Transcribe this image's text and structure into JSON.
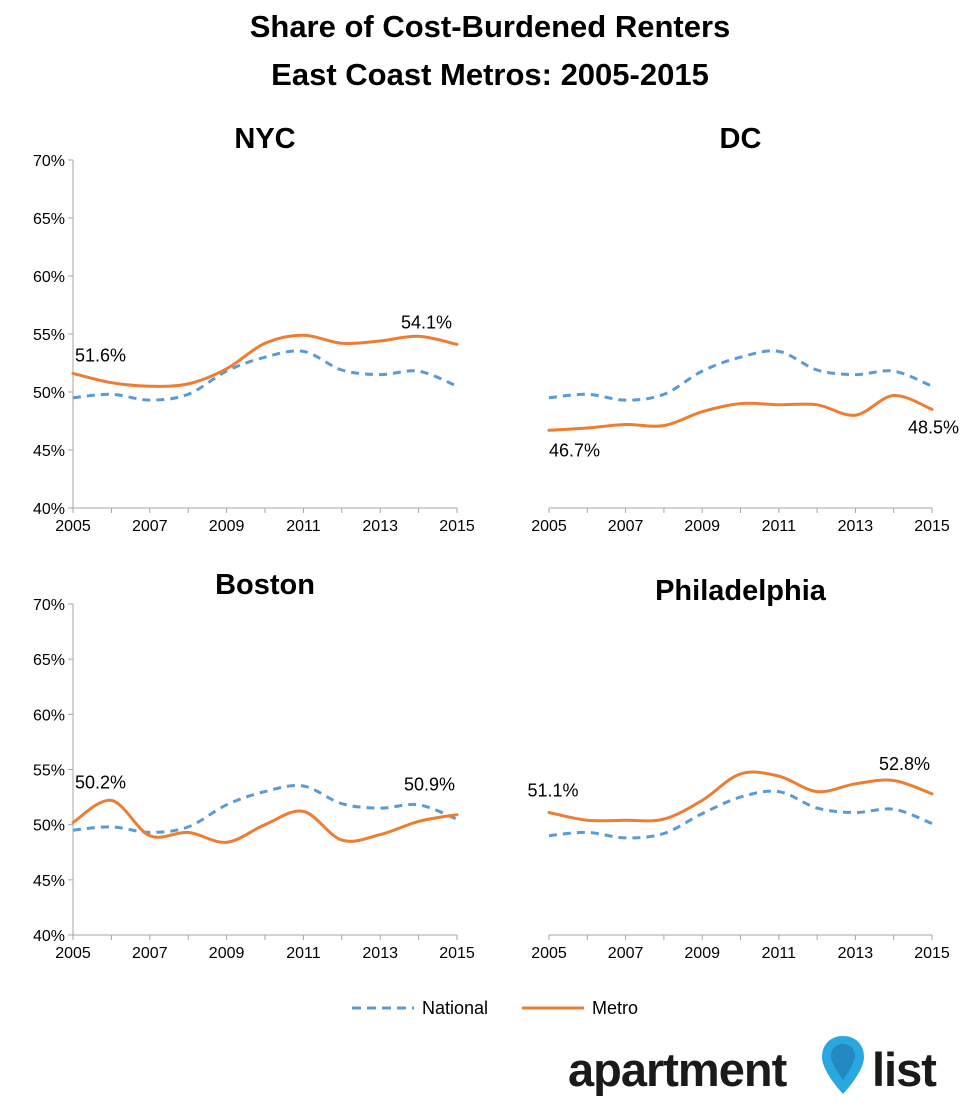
{
  "title_line1": "Share of Cost-Burdened Renters",
  "title_line2": "East Coast Metros: 2005-2015",
  "colors": {
    "national": "#5b9bd5",
    "metro": "#ed7d31"
  },
  "legend": {
    "national": "National",
    "metro": "Metro"
  },
  "logo": {
    "part1": "apartment",
    "part2": "list",
    "icon": "map-pin-icon"
  },
  "chart_data": [
    {
      "type": "line",
      "title": "NYC",
      "x": [
        2005,
        2006,
        2007,
        2008,
        2009,
        2010,
        2011,
        2012,
        2013,
        2014,
        2015
      ],
      "xticks": [
        "2005",
        "2007",
        "2009",
        "2011",
        "2013",
        "2015"
      ],
      "yticks": [
        "40%",
        "45%",
        "50%",
        "55%",
        "60%",
        "65%",
        "70%"
      ],
      "ylim": [
        40,
        70
      ],
      "show_yaxis": true,
      "series": [
        {
          "name": "National",
          "values": [
            49.5,
            49.8,
            49.3,
            49.8,
            51.8,
            53.0,
            53.5,
            51.9,
            51.5,
            51.8,
            50.5
          ]
        },
        {
          "name": "Metro",
          "values": [
            51.6,
            50.8,
            50.5,
            50.7,
            52.0,
            54.2,
            54.9,
            54.2,
            54.4,
            54.8,
            54.1
          ]
        }
      ],
      "annotations": [
        {
          "text": "51.6%",
          "series": 1,
          "index": 0,
          "pos": "above-right"
        },
        {
          "text": "54.1%",
          "series": 1,
          "index": 10,
          "pos": "above-left"
        }
      ]
    },
    {
      "type": "line",
      "title": "DC",
      "x": [
        2005,
        2006,
        2007,
        2008,
        2009,
        2010,
        2011,
        2012,
        2013,
        2014,
        2015
      ],
      "xticks": [
        "2005",
        "2007",
        "2009",
        "2011",
        "2013",
        "2015"
      ],
      "yticks": [],
      "ylim": [
        40,
        70
      ],
      "show_yaxis": false,
      "series": [
        {
          "name": "National",
          "values": [
            49.5,
            49.8,
            49.3,
            49.8,
            51.8,
            53.0,
            53.5,
            51.9,
            51.5,
            51.8,
            50.5
          ]
        },
        {
          "name": "Metro",
          "values": [
            46.7,
            46.9,
            47.2,
            47.1,
            48.3,
            49.0,
            48.9,
            48.9,
            48.0,
            49.7,
            48.5
          ]
        }
      ],
      "annotations": [
        {
          "text": "46.7%",
          "series": 1,
          "index": 0,
          "pos": "below-right"
        },
        {
          "text": "48.5%",
          "series": 1,
          "index": 10,
          "pos": "below-center"
        }
      ]
    },
    {
      "type": "line",
      "title": "Boston",
      "x": [
        2005,
        2006,
        2007,
        2008,
        2009,
        2010,
        2011,
        2012,
        2013,
        2014,
        2015
      ],
      "xticks": [
        "2005",
        "2007",
        "2009",
        "2011",
        "2013",
        "2015"
      ],
      "yticks": [
        "40%",
        "45%",
        "50%",
        "55%",
        "60%",
        "65%",
        "70%"
      ],
      "ylim": [
        40,
        70
      ],
      "show_yaxis": true,
      "series": [
        {
          "name": "National",
          "values": [
            49.5,
            49.8,
            49.3,
            49.8,
            51.8,
            53.0,
            53.5,
            51.9,
            51.5,
            51.8,
            50.5
          ]
        },
        {
          "name": "Metro",
          "values": [
            50.2,
            52.2,
            49.0,
            49.3,
            48.4,
            50.0,
            51.2,
            48.6,
            49.1,
            50.3,
            50.9
          ]
        }
      ],
      "annotations": [
        {
          "text": "50.2%",
          "series": 1,
          "index": 0,
          "pos": "above-right-high"
        },
        {
          "text": "50.9%",
          "series": 1,
          "index": 10,
          "pos": "above-left-high"
        }
      ]
    },
    {
      "type": "line",
      "title": "Philadelphia",
      "x": [
        2005,
        2006,
        2007,
        2008,
        2009,
        2010,
        2011,
        2012,
        2013,
        2014,
        2015
      ],
      "xticks": [
        "2005",
        "2007",
        "2009",
        "2011",
        "2013",
        "2015"
      ],
      "yticks": [],
      "ylim": [
        40,
        70
      ],
      "show_yaxis": false,
      "series": [
        {
          "name": "National",
          "values": [
            49.0,
            49.3,
            48.8,
            49.2,
            51.0,
            52.5,
            53.0,
            51.5,
            51.1,
            51.4,
            50.1
          ]
        },
        {
          "name": "Metro",
          "values": [
            51.1,
            50.4,
            50.4,
            50.5,
            52.2,
            54.6,
            54.4,
            53.0,
            53.7,
            54.0,
            52.8
          ]
        }
      ],
      "annotations": [
        {
          "text": "51.1%",
          "series": 1,
          "index": 0,
          "pos": "above-center"
        },
        {
          "text": "52.8%",
          "series": 1,
          "index": 10,
          "pos": "above-left-high"
        }
      ]
    }
  ]
}
